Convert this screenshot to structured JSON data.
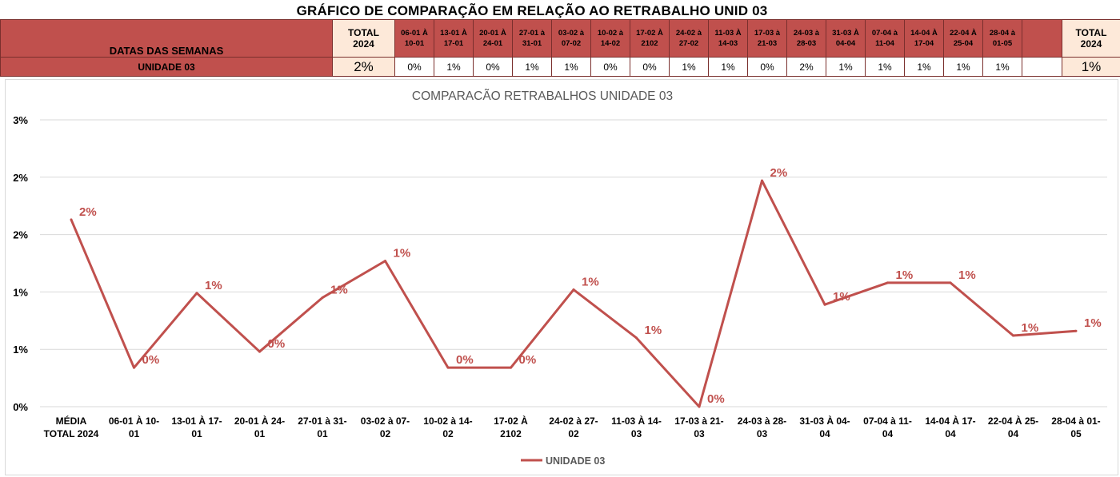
{
  "header": {
    "title": "GRÁFICO DE COMPARAÇÃO EM RELAÇÃO AO RETRABALHO UNID 03",
    "row_label_header": "DATAS DAS SEMANAS",
    "row_label": "UNIDADE 03",
    "total_label_line1": "TOTAL",
    "total_label_line2": "2024",
    "total_value_left": "2%",
    "total_value_right": "1%",
    "weeks": [
      {
        "l1": "06-01 À",
        "l2": "10-01",
        "value": "0%"
      },
      {
        "l1": "13-01 À",
        "l2": "17-01",
        "value": "1%"
      },
      {
        "l1": "20-01 À",
        "l2": "24-01",
        "value": "0%"
      },
      {
        "l1": "27-01 à",
        "l2": "31-01",
        "value": "1%"
      },
      {
        "l1": "03-02 à",
        "l2": "07-02",
        "value": "1%"
      },
      {
        "l1": "10-02 à",
        "l2": "14-02",
        "value": "0%"
      },
      {
        "l1": "17-02 À",
        "l2": "2102",
        "value": "0%"
      },
      {
        "l1": "24-02 à",
        "l2": "27-02",
        "value": "1%"
      },
      {
        "l1": "11-03 À",
        "l2": "14-03",
        "value": "1%"
      },
      {
        "l1": "17-03 à",
        "l2": "21-03",
        "value": "0%"
      },
      {
        "l1": "24-03 à",
        "l2": "28-03",
        "value": "2%"
      },
      {
        "l1": "31-03 À",
        "l2": "04-04",
        "value": "1%"
      },
      {
        "l1": "07-04 à",
        "l2": "11-04",
        "value": "1%"
      },
      {
        "l1": "14-04 À",
        "l2": "17-04",
        "value": "1%"
      },
      {
        "l1": "22-04 À",
        "l2": "25-04",
        "value": "1%"
      },
      {
        "l1": "28-04 à",
        "l2": "01-05",
        "value": "1%"
      }
    ]
  },
  "colors": {
    "header_red": "#c0504d",
    "total_fill": "#fde9d9",
    "series_line": "#c0504d",
    "data_label": "#c0504d",
    "gridline": "#d9d9d9"
  },
  "chart_data": {
    "type": "line",
    "title": "COMPARACÃO RETRABALHOS UNIDADE 03",
    "xlabel": "",
    "ylabel": "",
    "categories": [
      [
        "MÉDIA",
        "TOTAL 2024"
      ],
      [
        "06-01 À 10-",
        "01"
      ],
      [
        "13-01 À 17-",
        "01"
      ],
      [
        "20-01 À 24-",
        "01"
      ],
      [
        "27-01 à 31-",
        "01"
      ],
      [
        "03-02 à 07-",
        "02"
      ],
      [
        "10-02 à 14-",
        "02"
      ],
      [
        "17-02 À",
        "2102"
      ],
      [
        "24-02 à 27-",
        "02"
      ],
      [
        "11-03 À 14-",
        "03"
      ],
      [
        "17-03 à 21-",
        "03"
      ],
      [
        "24-03 à 28-",
        "03"
      ],
      [
        "31-03 À 04-",
        "04"
      ],
      [
        "07-04 à 11-",
        "04"
      ],
      [
        "14-04 À 17-",
        "04"
      ],
      [
        "22-04 À 25-",
        "04"
      ],
      [
        "28-04 à 01-",
        "05"
      ]
    ],
    "y_ticks": [
      "0%",
      "1%",
      "1%",
      "2%",
      "2%",
      "3%"
    ],
    "y_tick_values": [
      0,
      0.005,
      0.01,
      0.015,
      0.02,
      0.025
    ],
    "ylim": [
      0,
      0.025
    ],
    "grid": true,
    "legend_position": "bottom",
    "series": [
      {
        "name": "UNIDADE 03",
        "values": [
          0.0163,
          0.0034,
          0.0099,
          0.0048,
          0.0095,
          0.0127,
          0.0034,
          0.0034,
          0.0102,
          0.006,
          0.0,
          0.0197,
          0.0089,
          0.0108,
          0.0108,
          0.0062,
          0.0066
        ],
        "labels": [
          "2%",
          "0%",
          "1%",
          "0%",
          "1%",
          "1%",
          "0%",
          "0%",
          "1%",
          "1%",
          "0%",
          "2%",
          "1%",
          "1%",
          "1%",
          "1%",
          "1%"
        ]
      }
    ]
  }
}
